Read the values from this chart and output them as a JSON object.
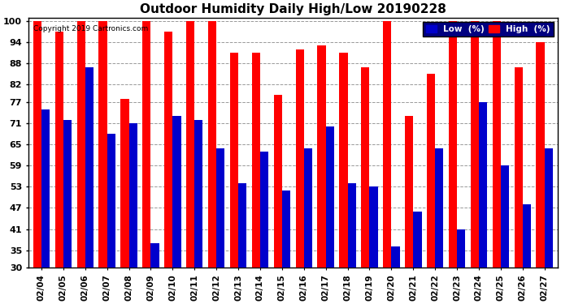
{
  "title": "Outdoor Humidity Daily High/Low 20190228",
  "copyright": "Copyright 2019 Cartronics.com",
  "dates": [
    "02/04",
    "02/05",
    "02/06",
    "02/07",
    "02/08",
    "02/09",
    "02/10",
    "02/11",
    "02/12",
    "02/13",
    "02/14",
    "02/15",
    "02/16",
    "02/17",
    "02/18",
    "02/19",
    "02/20",
    "02/21",
    "02/22",
    "02/23",
    "02/24",
    "02/25",
    "02/26",
    "02/27"
  ],
  "high": [
    100,
    97,
    100,
    100,
    78,
    100,
    97,
    100,
    100,
    91,
    91,
    79,
    92,
    93,
    91,
    87,
    100,
    73,
    85,
    100,
    100,
    100,
    87,
    94
  ],
  "low": [
    75,
    72,
    87,
    68,
    71,
    37,
    73,
    72,
    64,
    54,
    63,
    52,
    64,
    70,
    54,
    53,
    36,
    46,
    64,
    41,
    77,
    59,
    48,
    64
  ],
  "high_color": "#ff0000",
  "low_color": "#0000cc",
  "bg_color": "#ffffff",
  "grid_color": "#999999",
  "yticks": [
    30,
    35,
    41,
    47,
    53,
    59,
    65,
    71,
    77,
    82,
    88,
    94,
    100
  ],
  "ymin": 30,
  "ymax": 101,
  "title_fontsize": 11,
  "legend_low_label": "Low  (%)",
  "legend_high_label": "High  (%)"
}
